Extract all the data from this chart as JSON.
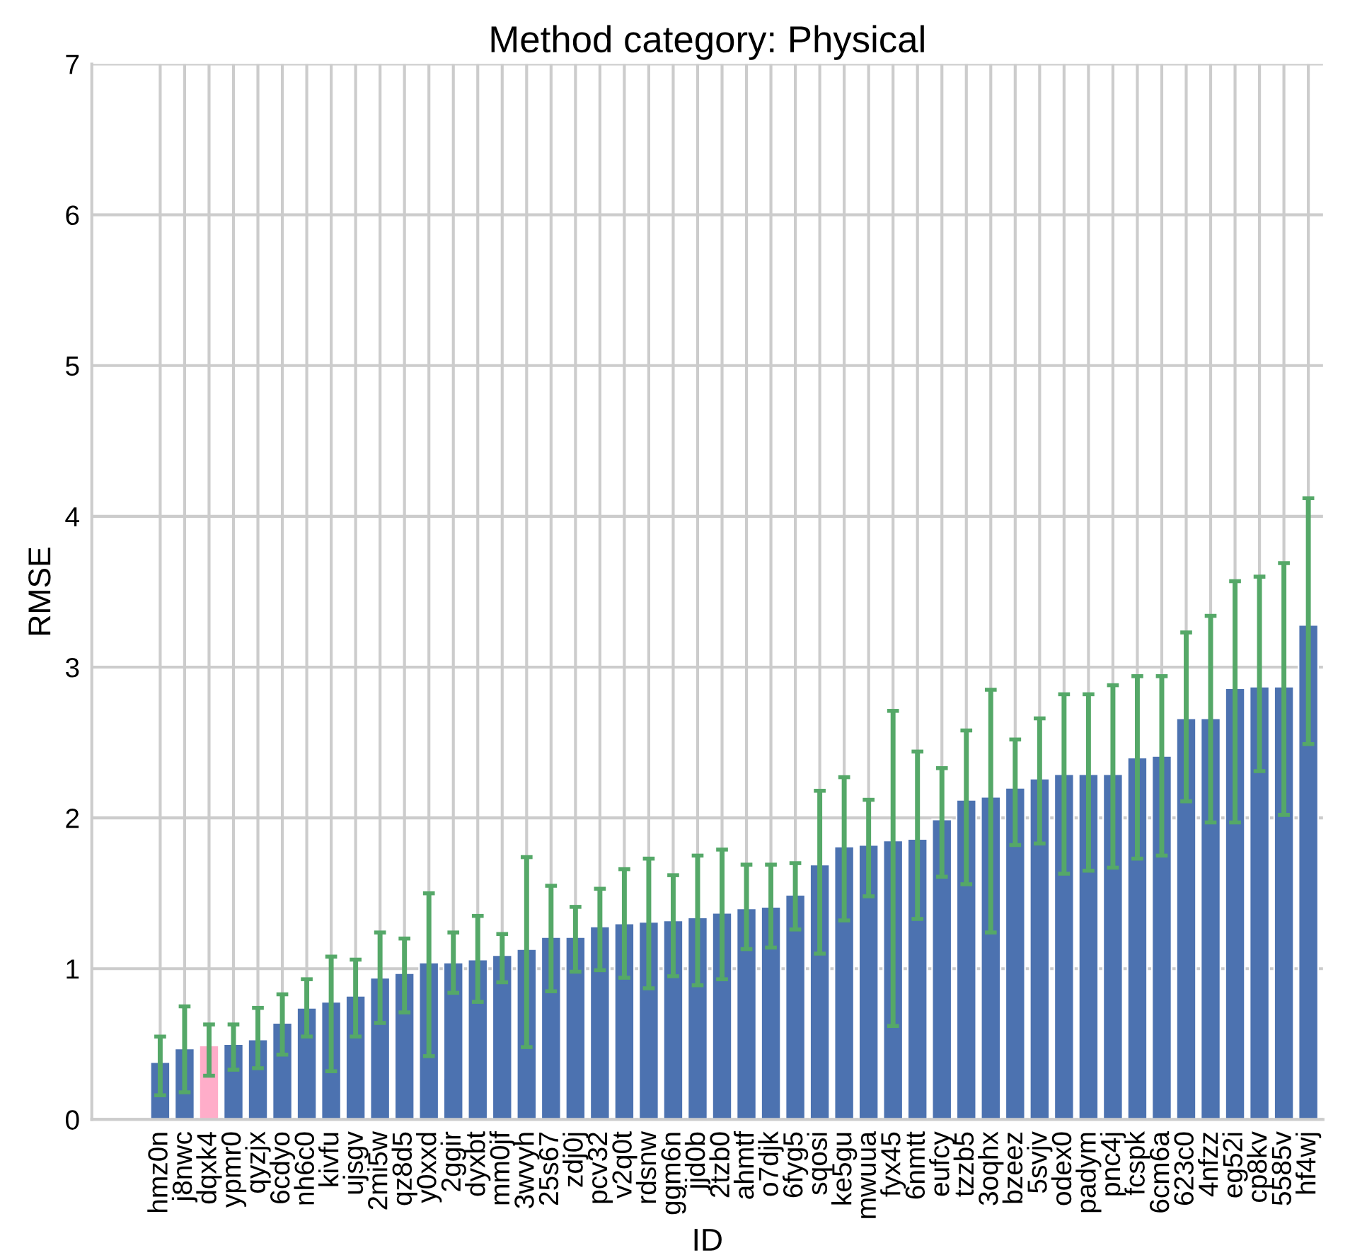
{
  "chart_data": {
    "type": "bar",
    "title": "Method category: Physical",
    "xlabel": "ID",
    "ylabel": "RMSE",
    "categories": [
      "hmz0n",
      "j8nwc",
      "dqxk4",
      "ypmr0",
      "qyzjx",
      "6cdyo",
      "nh6c0",
      "kivfu",
      "ujsgv",
      "2mi5w",
      "qz8d5",
      "y0xxd",
      "2ggir",
      "dyxbt",
      "mm0jf",
      "3wvyh",
      "25s67",
      "zdj0j",
      "pcv32",
      "v2q0t",
      "rdsnw",
      "ggm6n",
      "jjd0b",
      "2tzb0",
      "ahmtf",
      "o7djk",
      "6fyg5",
      "sqosi",
      "ke5gu",
      "mwuua",
      "fyx45",
      "6nmtt",
      "eufcy",
      "tzzb5",
      "3oqhx",
      "bzeez",
      "5svjv",
      "odex0",
      "padym",
      "pnc4j",
      "fcspk",
      "6cm6a",
      "623c0",
      "4nfzz",
      "eg52i",
      "cp8kv",
      "5585v",
      "hf4wj"
    ],
    "values": [
      0.38,
      0.47,
      0.49,
      0.5,
      0.53,
      0.64,
      0.74,
      0.78,
      0.82,
      0.94,
      0.97,
      1.04,
      1.04,
      1.06,
      1.09,
      1.13,
      1.21,
      1.21,
      1.28,
      1.3,
      1.31,
      1.32,
      1.34,
      1.37,
      1.4,
      1.41,
      1.49,
      1.69,
      1.81,
      1.82,
      1.85,
      1.86,
      1.99,
      2.12,
      2.14,
      2.2,
      2.26,
      2.29,
      2.29,
      2.29,
      2.4,
      2.41,
      2.66,
      2.66,
      2.86,
      2.87,
      2.87,
      3.28
    ],
    "errors": [
      [
        0.16,
        0.55
      ],
      [
        0.18,
        0.75
      ],
      [
        0.29,
        0.63
      ],
      [
        0.33,
        0.63
      ],
      [
        0.34,
        0.74
      ],
      [
        0.43,
        0.83
      ],
      [
        0.55,
        0.93
      ],
      [
        0.32,
        1.08
      ],
      [
        0.55,
        1.06
      ],
      [
        0.64,
        1.24
      ],
      [
        0.71,
        1.2
      ],
      [
        0.42,
        1.5
      ],
      [
        0.84,
        1.24
      ],
      [
        0.78,
        1.35
      ],
      [
        0.91,
        1.23
      ],
      [
        0.48,
        1.74
      ],
      [
        0.85,
        1.55
      ],
      [
        0.98,
        1.41
      ],
      [
        0.99,
        1.53
      ],
      [
        0.94,
        1.66
      ],
      [
        0.87,
        1.73
      ],
      [
        0.95,
        1.62
      ],
      [
        0.89,
        1.75
      ],
      [
        0.93,
        1.79
      ],
      [
        1.13,
        1.69
      ],
      [
        1.14,
        1.69
      ],
      [
        1.26,
        1.7
      ],
      [
        1.1,
        2.18
      ],
      [
        1.32,
        2.27
      ],
      [
        1.48,
        2.12
      ],
      [
        0.62,
        2.71
      ],
      [
        1.33,
        2.44
      ],
      [
        1.61,
        2.33
      ],
      [
        1.56,
        2.58
      ],
      [
        1.24,
        2.85
      ],
      [
        1.82,
        2.52
      ],
      [
        1.83,
        2.66
      ],
      [
        1.63,
        2.82
      ],
      [
        1.65,
        2.82
      ],
      [
        1.67,
        2.88
      ],
      [
        1.73,
        2.94
      ],
      [
        1.75,
        2.94
      ],
      [
        2.11,
        3.23
      ],
      [
        1.97,
        3.34
      ],
      [
        1.97,
        3.57
      ],
      [
        2.31,
        3.6
      ],
      [
        2.02,
        3.69
      ],
      [
        2.49,
        4.12
      ]
    ],
    "colors": [
      "#4c72b0",
      "#4c72b0",
      "#ffadc9",
      "#4c72b0",
      "#4c72b0",
      "#4c72b0",
      "#4c72b0",
      "#4c72b0",
      "#4c72b0",
      "#4c72b0",
      "#4c72b0",
      "#4c72b0",
      "#4c72b0",
      "#4c72b0",
      "#4c72b0",
      "#4c72b0",
      "#4c72b0",
      "#4c72b0",
      "#4c72b0",
      "#4c72b0",
      "#4c72b0",
      "#4c72b0",
      "#4c72b0",
      "#4c72b0",
      "#4c72b0",
      "#4c72b0",
      "#4c72b0",
      "#4c72b0",
      "#4c72b0",
      "#4c72b0",
      "#4c72b0",
      "#4c72b0",
      "#4c72b0",
      "#4c72b0",
      "#4c72b0",
      "#4c72b0",
      "#4c72b0",
      "#4c72b0",
      "#4c72b0",
      "#4c72b0",
      "#4c72b0",
      "#4c72b0",
      "#4c72b0",
      "#4c72b0",
      "#4c72b0",
      "#4c72b0",
      "#4c72b0",
      "#4c72b0"
    ],
    "ylim": [
      0,
      7
    ],
    "yticks": [
      0,
      1,
      2,
      3,
      4,
      5,
      6,
      7
    ],
    "grid": true
  }
}
